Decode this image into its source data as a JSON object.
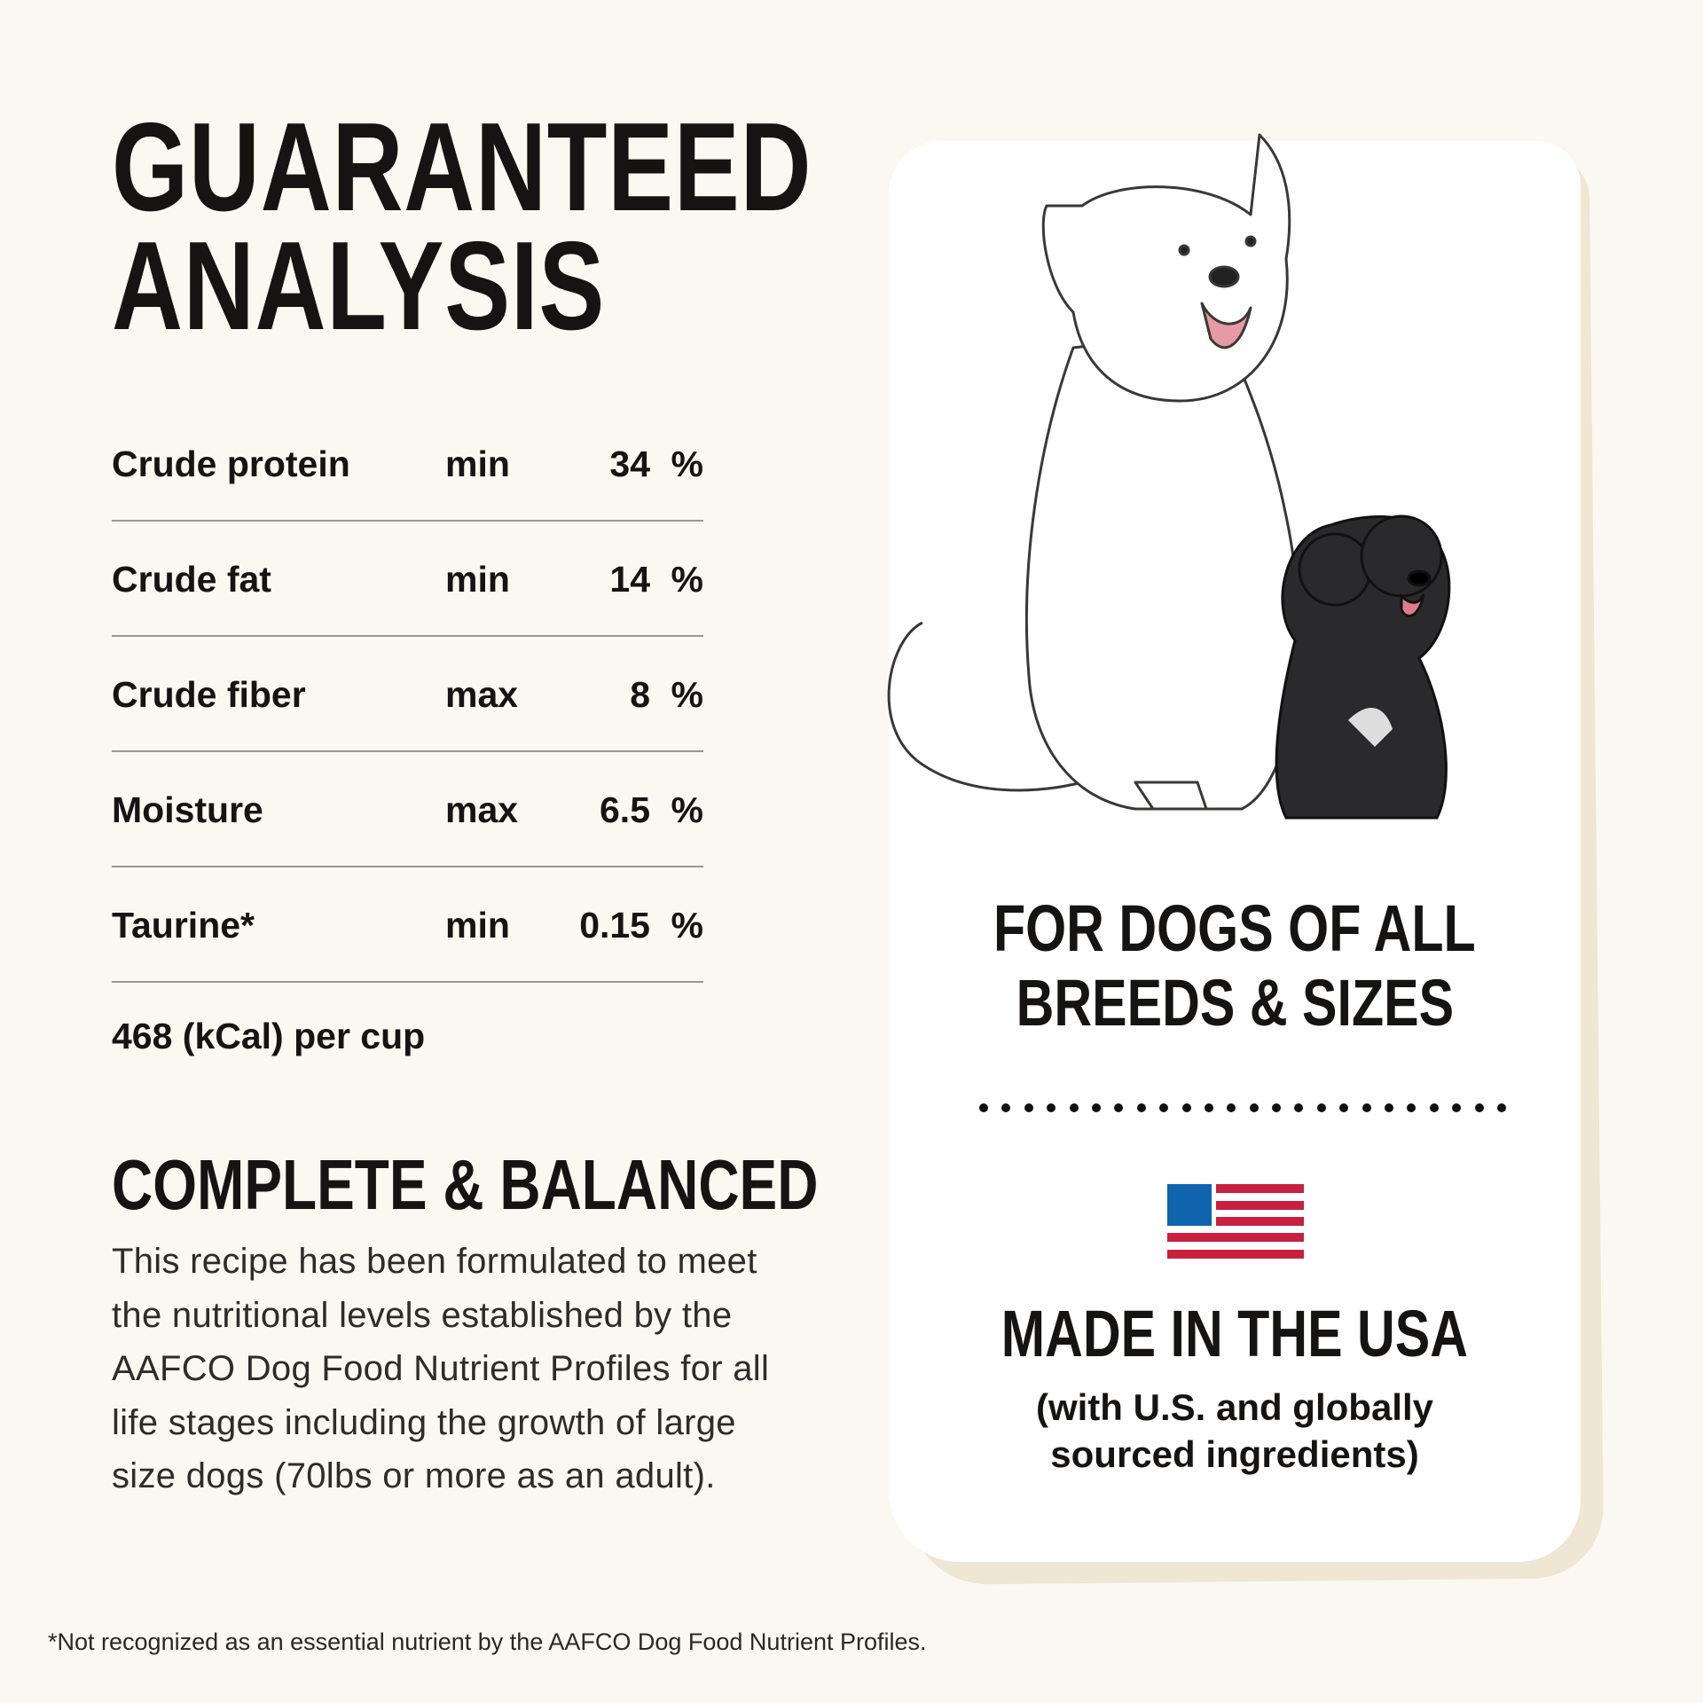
{
  "title": {
    "line1": "GUARANTEED",
    "line2": "ANALYSIS"
  },
  "analysis": [
    {
      "name": "Crude protein",
      "qualifier": "min",
      "value": "34",
      "unit": "%"
    },
    {
      "name": "Crude fat",
      "qualifier": "min",
      "value": "14",
      "unit": "%"
    },
    {
      "name": "Crude fiber",
      "qualifier": "max",
      "value": "8",
      "unit": "%"
    },
    {
      "name": "Moisture",
      "qualifier": "max",
      "value": "6.5",
      "unit": "%"
    },
    {
      "name": "Taurine*",
      "qualifier": "min",
      "value": "0.15",
      "unit": "%"
    }
  ],
  "calories": "468 (kCal) per cup",
  "complete": {
    "heading": "COMPLETE & BALANCED",
    "body": "This recipe has been formulated to meet the nutritional levels established by the AAFCO Dog Food Nutrient Profiles for all life stages including the growth of large size dogs (70lbs or more as an adult)."
  },
  "card": {
    "line1": "FOR DOGS OF ALL",
    "line2": "BREEDS & SIZES",
    "made": "MADE IN THE USA",
    "sub1": "(with U.S. and globally",
    "sub2": "sourced ingredients)",
    "illustration": "white-dog-and-black-puppy",
    "flag_icon": "us-flag-icon",
    "colors": {
      "flag_blue": "#0f64ad",
      "flag_red": "#c8203f"
    }
  },
  "footnote": "*Not recognized as an essential nutrient by the AAFCO Dog Food Nutrient Profiles."
}
